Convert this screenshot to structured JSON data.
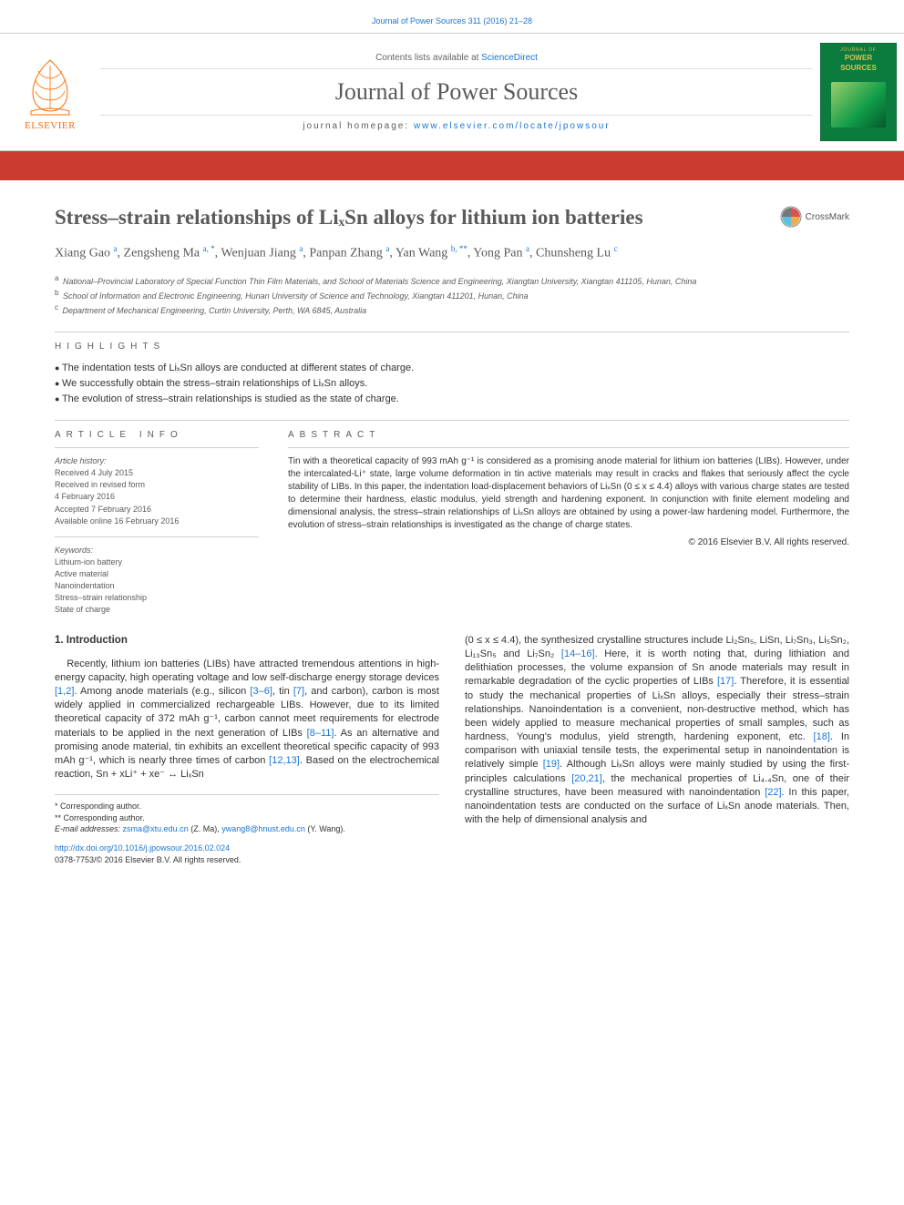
{
  "header": {
    "journal_citation": "Journal of Power Sources 311 (2016) 21–28",
    "contents_line_prefix": "Contents lists available at ",
    "contents_link": "ScienceDirect",
    "journal_title": "Journal of Power Sources",
    "homepage_label": "journal homepage: ",
    "homepage_link": "www.elsevier.com/locate/jpowsour",
    "publisher_logo_text": "ELSEVIER",
    "cover": {
      "kicker": "JOURNAL OF",
      "title_1": "POWER",
      "title_2": "SOURCES"
    },
    "crossmark_label": "CrossMark",
    "red_bar_color": "#c83b2e"
  },
  "paper": {
    "title": "Stress–strain relationships of LiₓSn alloys for lithium ion batteries",
    "authors_html": "Xiang Gao <sup>a</sup>, Zengsheng Ma <sup>a, *</sup>, Wenjuan Jiang <sup>a</sup>, Panpan Zhang <sup>a</sup>, Yan Wang <sup>b, **</sup>, Yong Pan <sup>a</sup>, Chunsheng Lu <sup>c</sup>",
    "affiliations": [
      {
        "sup": "a",
        "text": "National–Provincial Laboratory of Special Function Thin Film Materials, and School of Materials Science and Engineering, Xiangtan University, Xiangtan 411105, Hunan, China"
      },
      {
        "sup": "b",
        "text": "School of Information and Electronic Engineering, Hunan University of Science and Technology, Xiangtan 411201, Hunan, China"
      },
      {
        "sup": "c",
        "text": "Department of Mechanical Engineering, Curtin University, Perth, WA 6845, Australia"
      }
    ]
  },
  "highlights": {
    "heading": "HIGHLIGHTS",
    "items": [
      "The indentation tests of LiₓSn alloys are conducted at different states of charge.",
      "We successfully obtain the stress–strain relationships of LiₓSn alloys.",
      "The evolution of stress–strain relationships is studied as the state of charge."
    ]
  },
  "article_info": {
    "heading": "ARTICLE INFO",
    "history_label": "Article history:",
    "history": [
      "Received 4 July 2015",
      "Received in revised form",
      "4 February 2016",
      "Accepted 7 February 2016",
      "Available online 16 February 2016"
    ],
    "keywords_label": "Keywords:",
    "keywords": [
      "Lithium-ion battery",
      "Active material",
      "Nanoindentation",
      "Stress–strain relationship",
      "State of charge"
    ]
  },
  "abstract": {
    "heading": "ABSTRACT",
    "text": "Tin with a theoretical capacity of 993 mAh g⁻¹ is considered as a promising anode material for lithium ion batteries (LIBs). However, under the intercalated-Li⁺ state, large volume deformation in tin active materials may result in cracks and flakes that seriously affect the cycle stability of LIBs. In this paper, the indentation load-displacement behaviors of LiₓSn (0 ≤ x ≤ 4.4) alloys with various charge states are tested to determine their hardness, elastic modulus, yield strength and hardening exponent. In conjunction with finite element modeling and dimensional analysis, the stress–strain relationships of LiₓSn alloys are obtained by using a power-law hardening model. Furthermore, the evolution of stress–strain relationships is investigated as the change of charge states.",
    "copyright": "© 2016 Elsevier B.V. All rights reserved."
  },
  "body": {
    "intro_heading": "1. Introduction",
    "left_col_html": "Recently, lithium ion batteries (LIBs) have attracted tremendous attentions in high-energy capacity, high operating voltage and low self-discharge energy storage devices <span class='ref-link'>[1,2]</span>. Among anode materials (e.g., silicon <span class='ref-link'>[3–6]</span>, tin <span class='ref-link'>[7]</span>, and carbon), carbon is most widely applied in commercialized rechargeable LIBs. However, due to its limited theoretical capacity of 372 mAh g⁻¹, carbon cannot meet requirements for electrode materials to be applied in the next generation of LIBs <span class='ref-link'>[8–11]</span>. As an alternative and promising anode material, tin exhibits an excellent theoretical specific capacity of 993 mAh g⁻¹, which is nearly three times of carbon <span class='ref-link'>[12,13]</span>. Based on the electrochemical reaction, Sn + xLi⁺ + xe⁻ ↔ LiₓSn",
    "right_col_html": "(0 ≤ x ≤ 4.4), the synthesized crystalline structures include Li₂Sn₅, LiSn, Li₇Sn₃, Li₅Sn₂, Li₁₃Sn₅ and Li₇Sn₂ <span class='ref-link'>[14–16]</span>. Here, it is worth noting that, during lithiation and delithiation processes, the volume expansion of Sn anode materials may result in remarkable degradation of the cyclic properties of LIBs <span class='ref-link'>[17]</span>. Therefore, it is essential to study the mechanical properties of LiₓSn alloys, especially their stress–strain relationships. Nanoindentation is a convenient, non-destructive method, which has been widely applied to measure mechanical properties of small samples, such as hardness, Young's modulus, yield strength, hardening exponent, etc. <span class='ref-link'>[18]</span>. In comparison with uniaxial tensile tests, the experimental setup in nanoindentation is relatively simple <span class='ref-link'>[19]</span>. Although LiₓSn alloys were mainly studied by using the first-principles calculations <span class='ref-link'>[20,21]</span>, the mechanical properties of Li₄.₄Sn, one of their crystalline structures, have been measured with nanoindentation <span class='ref-link'>[22]</span>. In this paper, nanoindentation tests are conducted on the surface of LiₓSn anode materials. Then, with the help of dimensional analysis and"
  },
  "footnotes": {
    "corr1": "* Corresponding author.",
    "corr2": "** Corresponding author.",
    "emails_label": "E-mail addresses: ",
    "email1": "zsma@xtu.edu.cn",
    "email1_name": " (Z. Ma), ",
    "email2": "ywang8@hnust.edu.cn",
    "email2_name": " (Y. Wang)."
  },
  "doi": {
    "link": "http://dx.doi.org/10.1016/j.jpowsour.2016.02.024",
    "issn_line": "0378-7753/© 2016 Elsevier B.V. All rights reserved."
  },
  "styling": {
    "link_color": "#1976d2",
    "rule_color": "#d0d0d0",
    "body_text_color": "#333333",
    "meta_text_color": "#5a5a5a",
    "brand_orange": "#ff6b00",
    "cover_green": "#0b7b3e",
    "cover_gold": "#d6c35a"
  }
}
